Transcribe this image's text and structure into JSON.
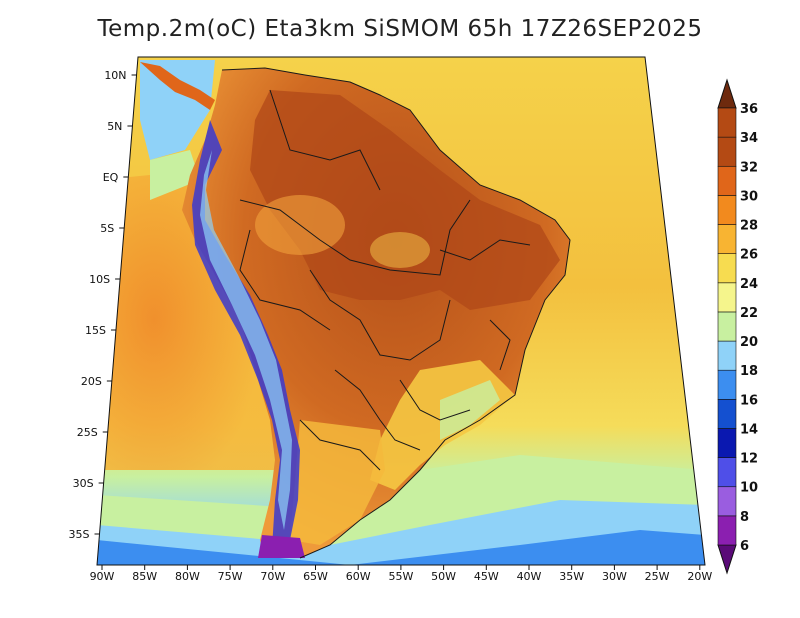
{
  "title": "Temp.2m(oC) Eta3km SiSMOM 65h 17Z26SEP2025",
  "latitude_labels": [
    "10N",
    "5N",
    "EQ",
    "5S",
    "10S",
    "15S",
    "20S",
    "25S",
    "30S",
    "35S"
  ],
  "longitude_labels": [
    "90W",
    "85W",
    "80W",
    "75W",
    "70W",
    "65W",
    "60W",
    "55W",
    "50W",
    "45W",
    "40W",
    "35W",
    "30W",
    "25W",
    "20W"
  ],
  "colorbar": {
    "labels": [
      "6",
      "8",
      "10",
      "12",
      "14",
      "16",
      "18",
      "20",
      "22",
      "24",
      "26",
      "28",
      "30",
      "32",
      "34",
      "36"
    ],
    "colors": [
      "#5a0a78",
      "#8b1fb0",
      "#9a5de0",
      "#4f4fe8",
      "#0a18b0",
      "#1450d0",
      "#3c8ef0",
      "#8fd2f8",
      "#c8f0a0",
      "#f5f58c",
      "#f7dc50",
      "#f8b432",
      "#f28a1e",
      "#e0661a",
      "#b44a14",
      "#6e2a0e"
    ]
  },
  "colors": {
    "ocean_warm": "#f2a03c",
    "ocean_mild": "#f5c842",
    "ocean_cool": "#c8f0a0",
    "land_hot": "#b44a14",
    "andes_cold": "#3a3ad0"
  }
}
